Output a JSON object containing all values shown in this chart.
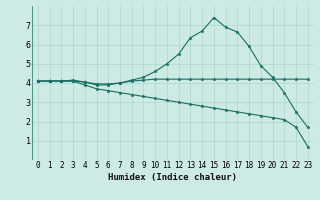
{
  "xlabel": "Humidex (Indice chaleur)",
  "bg_color": "#cdeae4",
  "grid_color": "#a8d8d0",
  "line_color": "#1a6e62",
  "xlim": [
    -0.5,
    23.5
  ],
  "ylim": [
    0,
    8
  ],
  "xticks": [
    0,
    1,
    2,
    3,
    4,
    5,
    6,
    7,
    8,
    9,
    10,
    11,
    12,
    13,
    14,
    15,
    16,
    17,
    18,
    19,
    20,
    21,
    22,
    23
  ],
  "yticks": [
    1,
    2,
    3,
    4,
    5,
    6,
    7
  ],
  "line1_x": [
    0,
    1,
    2,
    3,
    4,
    5,
    6,
    7,
    8,
    9,
    10,
    11,
    12,
    13,
    14,
    15,
    16,
    17,
    18,
    19,
    20,
    21,
    22,
    23
  ],
  "line1_y": [
    4.1,
    4.1,
    4.1,
    4.1,
    4.05,
    3.95,
    3.95,
    4.0,
    4.1,
    4.15,
    4.2,
    4.2,
    4.2,
    4.2,
    4.2,
    4.2,
    4.2,
    4.2,
    4.2,
    4.2,
    4.2,
    4.2,
    4.2,
    4.2
  ],
  "line2_x": [
    0,
    1,
    2,
    3,
    4,
    5,
    6,
    7,
    8,
    9,
    10,
    11,
    12,
    13,
    14,
    15,
    16,
    17,
    18,
    19,
    20,
    21,
    22,
    23
  ],
  "line2_y": [
    4.1,
    4.1,
    4.1,
    4.15,
    4.05,
    3.9,
    3.9,
    4.0,
    4.15,
    4.3,
    4.6,
    5.0,
    5.5,
    6.35,
    6.7,
    7.4,
    6.9,
    6.65,
    5.9,
    4.9,
    4.3,
    3.5,
    2.5,
    1.7
  ],
  "line3_x": [
    0,
    1,
    2,
    3,
    4,
    5,
    6,
    7,
    8,
    9,
    10,
    11,
    12,
    13,
    14,
    15,
    16,
    17,
    18,
    19,
    20,
    21,
    22,
    23
  ],
  "line3_y": [
    4.1,
    4.1,
    4.1,
    4.1,
    3.9,
    3.7,
    3.6,
    3.5,
    3.4,
    3.3,
    3.2,
    3.1,
    3.0,
    2.9,
    2.8,
    2.7,
    2.6,
    2.5,
    2.4,
    2.3,
    2.2,
    2.1,
    1.7,
    0.7
  ],
  "tick_fontsize": 5.5,
  "xlabel_fontsize": 6.5,
  "marker_size": 2.5,
  "linewidth": 0.8
}
